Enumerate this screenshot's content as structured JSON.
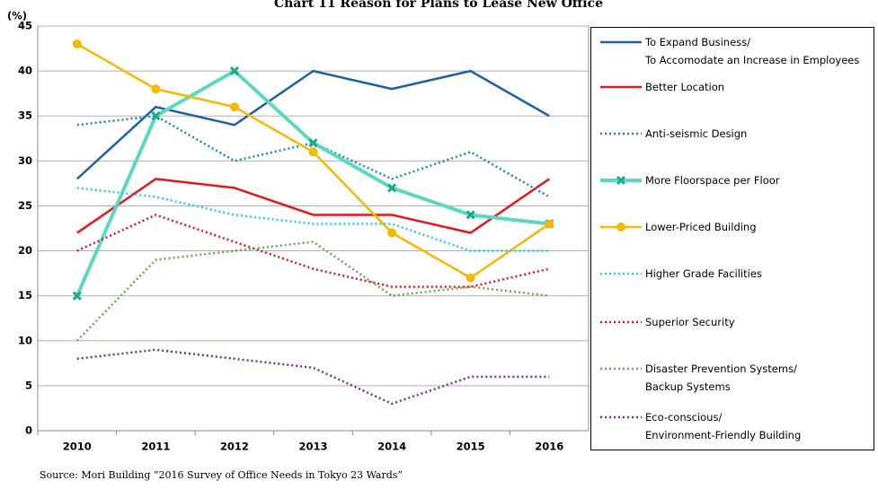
{
  "chart_data": {
    "type": "line",
    "title": "Chart 11 Reason for Plans to Lease New Office",
    "y_label": "(%)",
    "source": "Source: Mori Building “2016 Survey of Office Needs in Tokyo 23 Wards”",
    "categories": [
      "2010",
      "2011",
      "2012",
      "2013",
      "2014",
      "2015",
      "2016"
    ],
    "ylim": [
      0,
      45
    ],
    "yticks": [
      0,
      5,
      10,
      15,
      20,
      25,
      30,
      35,
      40,
      45
    ],
    "grid": true,
    "legend": "right",
    "series": [
      {
        "name": "To Expand Business/\nTo Accomodate an Increase in Employees",
        "color": "#1f5fa8",
        "style": "solid",
        "values": [
          28,
          36,
          34,
          40,
          38,
          40,
          35
        ]
      },
      {
        "name": "Better Location",
        "color": "#e8141b",
        "style": "solid",
        "values": [
          22,
          28,
          27,
          24,
          24,
          22,
          28
        ]
      },
      {
        "name": "Anti-seismic Design",
        "color": "#1a8aa8",
        "style": "dotted",
        "values": [
          34,
          35,
          30,
          32,
          28,
          31,
          26
        ]
      },
      {
        "name": "More Floorspace per Floor",
        "color": "#5ad8c2",
        "style": "double",
        "marker": "x",
        "values": [
          15,
          35,
          40,
          32,
          27,
          24,
          23
        ]
      },
      {
        "name": "Lower-Priced Building",
        "color": "#f7b800",
        "style": "solid",
        "marker": "circle",
        "values": [
          43,
          38,
          36,
          31,
          22,
          17,
          23
        ]
      },
      {
        "name": "Higher Grade Facilities",
        "color": "#2fc8e8",
        "style": "dotted",
        "values": [
          27,
          26,
          24,
          23,
          23,
          20,
          20
        ]
      },
      {
        "name": "Superior Security",
        "color": "#e8141b",
        "style": "dotted",
        "values": [
          20,
          24,
          21,
          18,
          16,
          16,
          18
        ]
      },
      {
        "name": "Disaster Prevention Systems/\nBackup Systems",
        "color": "#6aa84f",
        "style": "dotted",
        "values": [
          10,
          19,
          20,
          21,
          15,
          16,
          15
        ]
      },
      {
        "name": "Eco-conscious/\nEnvironment-Friendly Building",
        "color": "#7030a0",
        "style": "dotted",
        "values": [
          8,
          9,
          8,
          7,
          3,
          6,
          6
        ]
      }
    ]
  }
}
